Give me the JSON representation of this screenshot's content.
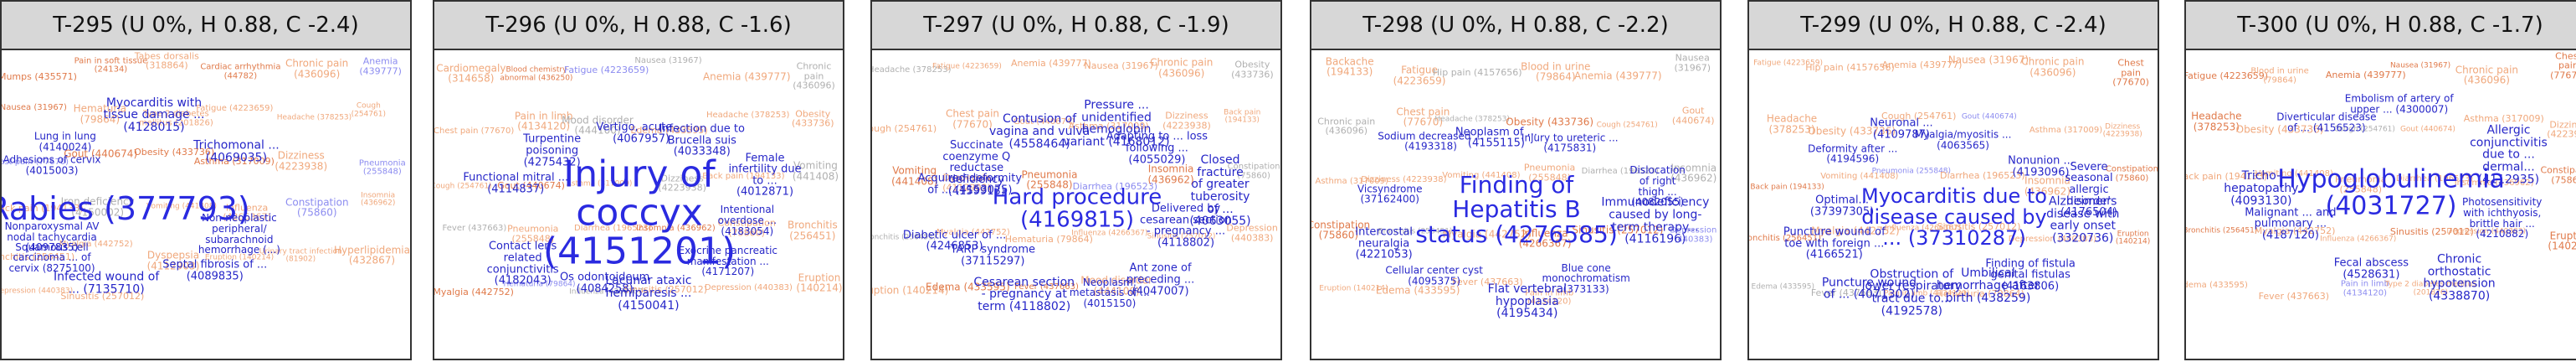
{
  "colors": {
    "orange": "#e07a4a",
    "orange_light": "#f0a87c",
    "blue": "#2a2ae0",
    "blue_light": "#8c8cf0",
    "grey": "#b0b0b0"
  },
  "panels": [
    {
      "title": "T-295 (U 0%, H 0.88, C -2.4)",
      "main": "Rabies (377793)",
      "mid": [
        "Non-neoplastic peripheral/ subarachnoid hemorrhage (...)",
        "Septal fibrosis of ... (4089835)",
        "Infected wound of ... (7135710)",
        "Squamous cell carcinoma ... of cervix (8275100)",
        "Nonparoxysmal AV nodal tachycardia (4097835)",
        "Adhesions of cervix (4015003)",
        "Lung in lung (4140024)",
        "Myocarditis with tissue damage ... (4128015)",
        "Trichomonal ... (4069035)"
      ],
      "small": [
        "Mumps (435571)",
        "Pain in soft tissue (24134)",
        "Tabes dorsalis (318864)",
        "Cardiac arrhythmia (44782)",
        "Chronic pain (436096)",
        "Anemia (439777)",
        "Nausea (31967)",
        "Hematuria (79864)",
        "Type 2 diabetes mellitus (201826)",
        "Fatigue (4223659)",
        "Headache (378253)",
        "Cough (254761)",
        "Chest pain (77670)",
        "Gout (440674)",
        "Obesity (433736)",
        "Asthma (317009)",
        "Dizziness (4223938)",
        "Pneumonia (255848)",
        "Back pain (194133)",
        "Iron deficiency (4150002)",
        "Vomiting (441408)",
        "Influenza (4266367)",
        "Constipation (75860)",
        "Insomnia (436962)",
        "Bronchitis (256451)",
        "Myalgia (442752)",
        "Dyspepsia (4112903)",
        "Eruption (140214)",
        "Urinary tract infection (81902)",
        "Hyperlipidemia (432867)",
        "Depression (440383)",
        "Sinusitis (257012)"
      ]
    },
    {
      "title": "T-296 (U 0%, H 0.88, C -1.6)",
      "main": "Injury of coccyx (4151201)",
      "mid": [
        "Intentional overdose ... (4183054)",
        "Exocrine pancreatic manifestation ... (4171207)",
        "Lacunar ataxic hemiparesis ... (4150041)",
        "Os odontoideum (4084258)",
        "Contact lens related conjunctivitis (4182043)",
        "Functional mitral ... (4114837)",
        "Turpentine poisoning (4275432)",
        "Vertigo, acute ... (4067957)",
        "Infection due to Brucella suis (4033348)",
        "Female infertility due to ... (4012871)"
      ],
      "small": [
        "Cardiomegaly (314658)",
        "Blood chemistry abnormal (436250)",
        "Fatigue (4223659)",
        "Nausea (31967)",
        "Anemia (439777)",
        "Chronic pain (436096)",
        "Chest pain (77670)",
        "Pain in limb (4134120)",
        "Mood disorder (444100)",
        "Edema (433595)",
        "Headache (378253)",
        "Obesity (433736)",
        "Cough (254761)",
        "Gout (440674)",
        "Asthma (317009)",
        "Dizziness (4223938)",
        "Back pain (194133)",
        "Vomiting (441408)",
        "Fever (437663)",
        "Pneumonia (255848)",
        "Diarrhea (196523)",
        "Insomnia (436962)",
        "Constipation (75860)",
        "Bronchitis (256451)",
        "Myalgia (442752)",
        "Hematuria (79864)",
        "Influenza (4266367)",
        "Sinusitis (257012)",
        "Depression (440383)",
        "Eruption (140214)"
      ]
    },
    {
      "title": "T-297 (U 0%, H 0.88, C -1.9)",
      "main": "Hard procedure (4169815)",
      "mid": [
        "Delivered by cesarean section - pregnancy ... (4118802)",
        "Ant zone of preceding ... (4047007)",
        "Neoplasm: metastasis of ... (4015150)",
        "Cesarean section - pregnancy at term (4118802)",
        "TARP syndrome (37115297)",
        "Diabetic ulcer of ... (4246853)",
        "Acquired deformity of ... (4153075)",
        "Succinate coenzyme Q reductase deficiency (4159913)",
        "Contusion of vagina and vulva (4558464)",
        "Pressure ... unidentified hemoglobin variant (4168012)",
        "Adapting to ... loss following ... (4055029)",
        "Closed fracture of greater tuberosity of ... (4063055)"
      ],
      "small": [
        "Headache (378253)",
        "Fatigue (4223659)",
        "Anemia (439777)",
        "Nausea (31967)",
        "Chronic pain (436096)",
        "Obesity (433736)",
        "Cough (254761)",
        "Chest pain (77670)",
        "Gout (440674)",
        "Asthma (317009)",
        "Dizziness (4223938)",
        "Back pain (194133)",
        "Vomiting (441408)",
        "Dyspepsia (4112903)",
        "Pneumonia (255848)",
        "Diarrhea (196523)",
        "Insomnia (436962)",
        "Constipation (75860)",
        "Bronchitis (256451)",
        "Myalgia (442752)",
        "Hematuria (79864)",
        "Influenza (4266367)",
        "Sinusitis (257012)",
        "Depression (440383)",
        "Eruption (140214)",
        "Edema (433595)",
        "Fever (437663)",
        "Mood disorder (444100)"
      ]
    },
    {
      "title": "T-298 (U 0%, H 0.88, C -2.2)",
      "main": "Finding of Hepatitis B status (4276585)",
      "mid": [
        "Immunodeficiency caused by long-term therapy... (4116196)",
        "Blue cone monochromatism (373133)",
        "Flat vertebral hypoplasia (4195434)",
        "Cellular center cyst (4095375)",
        "Intercostal neuralgia (4221053)",
        "Vicsyndrome (37162400)",
        "Sodium decreased ... (4193318)",
        "Neoplasm of ... (4155115)",
        "Injury to ureteric ... (4175831)",
        "Dislocation of right thigh ... (4082055)"
      ],
      "small": [
        "Backache (194133)",
        "Fatigue (4223659)",
        "Hip pain (4157656)",
        "Blood in urine (79864)",
        "Anemia (439777)",
        "Nausea (31967)",
        "Chronic pain (436096)",
        "Chest pain (77670)",
        "Headache (378253)",
        "Obesity (433736)",
        "Cough (254761)",
        "Gout (440674)",
        "Asthma (317009)",
        "Dizziness (4223938)",
        "Vomiting (441408)",
        "Pneumonia (255848)",
        "Diarrhea (196523)",
        "Insomnia (436962)",
        "Constipation (75860)",
        "Bronchitis (256451)",
        "Myalgia (442752)",
        "Influenza (4266367)",
        "Sinusitis (257012)",
        "Depression (440383)",
        "Eruption (140214)",
        "Edema (433595)",
        "Fever (437663)",
        "Pain in limb (4134120)"
      ]
    },
    {
      "title": "T-299 (U 0%, H 0.88, C -2.4)",
      "main": "Myocarditis due to disease caused by ... (37310287)",
      "mid": [
        "Alzheimer's disease with early onset (3320736)",
        "Finding of fistula genital fistulas (4163806)",
        "Umbilical hemorrhage after birth (438259)",
        "Obstruction of lower respiratory tract due to... (4192578)",
        "Puncture wound of ... (4071302)",
        "Puncture wound of toe with foreign ... (4166521)",
        "Optimal... (37397305)",
        "Deformity after ... (4194596)",
        "Neuronal ... (4109787)",
        "Myalgia/myositis ... (4063565)",
        "Nonunion ... (4193096)",
        "Severe seasonal allergic disorder (4176504)"
      ],
      "small": [
        "Fatigue (4223659)",
        "Hip pain (4157656)",
        "Anemia (439777)",
        "Nausea (31967)",
        "Chronic pain (436096)",
        "Chest pain (77670)",
        "Headache (378253)",
        "Obesity (433736)",
        "Cough (254761)",
        "Gout (440674)",
        "Asthma (317009)",
        "Dizziness (4223938)",
        "Back pain (194133)",
        "Vomiting (441408)",
        "Pneumonia (255848)",
        "Diarrhea (196523)",
        "Insomnia (436962)",
        "Constipation (75860)",
        "Bronchitis (256451)",
        "Myalgia (442752)",
        "Influenza (4266367)",
        "Sinusitis (257012)",
        "Depression (440383)",
        "Eruption (140214)",
        "Edema (433595)",
        "Fever (437663)",
        "Pain in limb (4134120)",
        "Hematuria (79864)"
      ]
    },
    {
      "title": "T-300 (U 0%, H 0.88, C -1.7)",
      "main": "Hypoglobulinemia (4031727)",
      "mid": [
        "Photosensitivity with ichthyosis, brittle hair ... (4210882)",
        "Chronic orthostatic hypotension (4338870)",
        "Fecal abscess (4528631)",
        "Malignant ... and pulmonary ... (4187120)",
        "Tricho-hepatopathy (4093130)",
        "Diverticular disease of ... (4156523)",
        "Embolism of artery of upper ... (4300007)",
        "Allergic conjunctivitis due to ... dermal... (4112935)"
      ],
      "small": [
        "Fatigue (4223659)",
        "Blood in urine (79864)",
        "Anemia (439777)",
        "Nausea (31967)",
        "Chronic pain (436096)",
        "Chest pain (77670)",
        "Headache (378253)",
        "Obesity (433736)",
        "Cough (254761)",
        "Gout (440674)",
        "Asthma (317009)",
        "Dizziness (4223938)",
        "Back pain (194133)",
        "Vomiting (441408)",
        "Pneumonia (255848)",
        "Diarrhea (196523)",
        "Insomnia (436962)",
        "Constipation (75860)",
        "Bronchitis (256451)",
        "Myalgia (442752)",
        "Influenza (4266367)",
        "Sinusitis (257012)",
        "Depression (440383)",
        "Eruption (140214)",
        "Edema (433595)",
        "Fever (437663)",
        "Pain in limb (4134120)",
        "Type 2 diabetes mellitus (201826)"
      ]
    }
  ]
}
